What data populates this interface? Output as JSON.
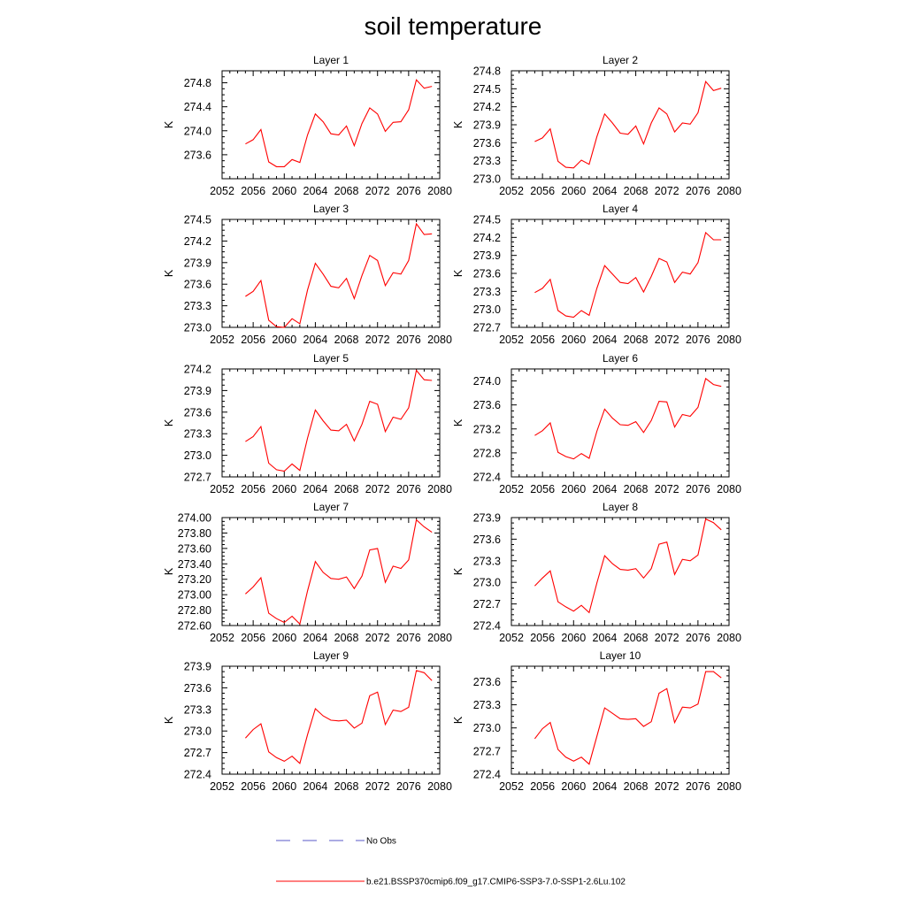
{
  "title": "soil temperature",
  "chart_data": [
    {
      "type": "line",
      "title": "Layer 1",
      "ylabel": "K",
      "xlim": [
        2052,
        2080
      ],
      "ylim": [
        273.2,
        275.0
      ],
      "xticks": [
        "2052",
        "2056",
        "2060",
        "2064",
        "2068",
        "2072",
        "2076",
        "2080"
      ],
      "yticks": [
        "273.6",
        "274.0",
        "274.4",
        "274.8"
      ],
      "x": [
        2055,
        2056,
        2057,
        2058,
        2059,
        2060,
        2061,
        2062,
        2063,
        2064,
        2065,
        2066,
        2067,
        2068,
        2069,
        2070,
        2071,
        2072,
        2073,
        2074,
        2075,
        2076,
        2077,
        2078,
        2079
      ],
      "series": [
        {
          "name": "b.e21.BSSP370cmip6.f09_g17.CMIP6-SSP3-7.0-SSP1-2.6Lu.102",
          "color": "#ff0000",
          "values": [
            273.78,
            273.85,
            274.02,
            273.48,
            273.4,
            273.4,
            273.52,
            273.47,
            273.93,
            274.28,
            274.15,
            273.95,
            273.93,
            274.08,
            273.75,
            274.12,
            274.38,
            274.28,
            273.99,
            274.14,
            274.15,
            274.35,
            274.85,
            274.71,
            274.74
          ]
        }
      ]
    },
    {
      "type": "line",
      "title": "Layer 2",
      "ylabel": "K",
      "xlim": [
        2052,
        2080
      ],
      "ylim": [
        273.0,
        274.8
      ],
      "xticks": [
        "2052",
        "2056",
        "2060",
        "2064",
        "2068",
        "2072",
        "2076",
        "2080"
      ],
      "yticks": [
        "273.0",
        "273.3",
        "273.6",
        "273.9",
        "274.2",
        "274.5",
        "274.8"
      ],
      "x": [
        2055,
        2056,
        2057,
        2058,
        2059,
        2060,
        2061,
        2062,
        2063,
        2064,
        2065,
        2066,
        2067,
        2068,
        2069,
        2070,
        2071,
        2072,
        2073,
        2074,
        2075,
        2076,
        2077,
        2078,
        2079
      ],
      "series": [
        {
          "name": "b.e21.BSSP370cmip6.f09_g17.CMIP6-SSP3-7.0-SSP1-2.6Lu.102",
          "color": "#ff0000",
          "values": [
            273.62,
            273.68,
            273.83,
            273.29,
            273.19,
            273.18,
            273.31,
            273.24,
            273.7,
            274.08,
            273.93,
            273.76,
            273.74,
            273.88,
            273.58,
            273.93,
            274.18,
            274.08,
            273.78,
            273.93,
            273.91,
            274.1,
            274.62,
            274.47,
            274.51
          ]
        }
      ]
    },
    {
      "type": "line",
      "title": "Layer 3",
      "ylabel": "K",
      "xlim": [
        2052,
        2080
      ],
      "ylim": [
        273.0,
        274.5
      ],
      "xticks": [
        "2052",
        "2056",
        "2060",
        "2064",
        "2068",
        "2072",
        "2076",
        "2080"
      ],
      "yticks": [
        "273.0",
        "273.3",
        "273.6",
        "273.9",
        "274.2",
        "274.5"
      ],
      "x": [
        2055,
        2056,
        2057,
        2058,
        2059,
        2060,
        2061,
        2062,
        2063,
        2064,
        2065,
        2066,
        2067,
        2068,
        2069,
        2070,
        2071,
        2072,
        2073,
        2074,
        2075,
        2076,
        2077,
        2078,
        2079
      ],
      "series": [
        {
          "name": "b.e21.BSSP370cmip6.f09_g17.CMIP6-SSP3-7.0-SSP1-2.6Lu.102",
          "color": "#ff0000",
          "values": [
            273.43,
            273.5,
            273.65,
            273.1,
            273.01,
            273.0,
            273.12,
            273.05,
            273.52,
            273.89,
            273.74,
            273.57,
            273.55,
            273.68,
            273.4,
            273.72,
            274.0,
            273.93,
            273.58,
            273.76,
            273.74,
            273.93,
            274.44,
            274.29,
            274.3
          ]
        }
      ]
    },
    {
      "type": "line",
      "title": "Layer 4",
      "ylabel": "K",
      "xlim": [
        2052,
        2080
      ],
      "ylim": [
        272.7,
        274.5
      ],
      "xticks": [
        "2052",
        "2056",
        "2060",
        "2064",
        "2068",
        "2072",
        "2076",
        "2080"
      ],
      "yticks": [
        "272.7",
        "273.0",
        "273.3",
        "273.6",
        "273.9",
        "274.2",
        "274.5"
      ],
      "x": [
        2055,
        2056,
        2057,
        2058,
        2059,
        2060,
        2061,
        2062,
        2063,
        2064,
        2065,
        2066,
        2067,
        2068,
        2069,
        2070,
        2071,
        2072,
        2073,
        2074,
        2075,
        2076,
        2077,
        2078,
        2079
      ],
      "series": [
        {
          "name": "b.e21.BSSP370cmip6.f09_g17.CMIP6-SSP3-7.0-SSP1-2.6Lu.102",
          "color": "#ff0000",
          "values": [
            273.28,
            273.35,
            273.5,
            272.98,
            272.89,
            272.87,
            272.98,
            272.9,
            273.35,
            273.73,
            273.59,
            273.45,
            273.43,
            273.53,
            273.29,
            273.55,
            273.85,
            273.79,
            273.45,
            273.62,
            273.59,
            273.78,
            274.28,
            274.16,
            274.16
          ]
        }
      ]
    },
    {
      "type": "line",
      "title": "Layer 5",
      "ylabel": "K",
      "xlim": [
        2052,
        2080
      ],
      "ylim": [
        272.7,
        274.2
      ],
      "xticks": [
        "2052",
        "2056",
        "2060",
        "2064",
        "2068",
        "2072",
        "2076",
        "2080"
      ],
      "yticks": [
        "272.7",
        "273.0",
        "273.3",
        "273.6",
        "273.9",
        "274.2"
      ],
      "x": [
        2055,
        2056,
        2057,
        2058,
        2059,
        2060,
        2061,
        2062,
        2063,
        2064,
        2065,
        2066,
        2067,
        2068,
        2069,
        2070,
        2071,
        2072,
        2073,
        2074,
        2075,
        2076,
        2077,
        2078,
        2079
      ],
      "series": [
        {
          "name": "b.e21.BSSP370cmip6.f09_g17.CMIP6-SSP3-7.0-SSP1-2.6Lu.102",
          "color": "#ff0000",
          "values": [
            273.19,
            273.26,
            273.4,
            272.89,
            272.8,
            272.78,
            272.88,
            272.79,
            273.24,
            273.63,
            273.48,
            273.35,
            273.34,
            273.43,
            273.2,
            273.43,
            273.75,
            273.71,
            273.33,
            273.53,
            273.5,
            273.66,
            274.18,
            274.05,
            274.04
          ]
        }
      ]
    },
    {
      "type": "line",
      "title": "Layer 6",
      "ylabel": "K",
      "xlim": [
        2052,
        2080
      ],
      "ylim": [
        272.4,
        274.2
      ],
      "xticks": [
        "2052",
        "2056",
        "2060",
        "2064",
        "2068",
        "2072",
        "2076",
        "2080"
      ],
      "yticks": [
        "272.4",
        "272.8",
        "273.2",
        "273.6",
        "274.0"
      ],
      "x": [
        2055,
        2056,
        2057,
        2058,
        2059,
        2060,
        2061,
        2062,
        2063,
        2064,
        2065,
        2066,
        2067,
        2068,
        2069,
        2070,
        2071,
        2072,
        2073,
        2074,
        2075,
        2076,
        2077,
        2078,
        2079
      ],
      "series": [
        {
          "name": "b.e21.BSSP370cmip6.f09_g17.CMIP6-SSP3-7.0-SSP1-2.6Lu.102",
          "color": "#ff0000",
          "values": [
            273.09,
            273.17,
            273.3,
            272.81,
            272.74,
            272.7,
            272.79,
            272.71,
            273.16,
            273.53,
            273.38,
            273.27,
            273.26,
            273.32,
            273.14,
            273.34,
            273.66,
            273.65,
            273.23,
            273.44,
            273.41,
            273.56,
            274.04,
            273.94,
            273.91
          ]
        }
      ]
    },
    {
      "type": "line",
      "title": "Layer 7",
      "ylabel": "K",
      "xlim": [
        2052,
        2080
      ],
      "ylim": [
        272.6,
        274.0
      ],
      "xticks": [
        "2052",
        "2056",
        "2060",
        "2064",
        "2068",
        "2072",
        "2076",
        "2080"
      ],
      "yticks": [
        "272.60",
        "272.80",
        "273.00",
        "273.20",
        "273.40",
        "273.60",
        "273.80",
        "274.00"
      ],
      "x": [
        2055,
        2056,
        2057,
        2058,
        2059,
        2060,
        2061,
        2062,
        2063,
        2064,
        2065,
        2066,
        2067,
        2068,
        2069,
        2070,
        2071,
        2072,
        2073,
        2074,
        2075,
        2076,
        2077,
        2078,
        2079
      ],
      "series": [
        {
          "name": "b.e21.BSSP370cmip6.f09_g17.CMIP6-SSP3-7.0-SSP1-2.6Lu.102",
          "color": "#ff0000",
          "values": [
            273.01,
            273.1,
            273.22,
            272.76,
            272.69,
            272.64,
            272.72,
            272.62,
            273.05,
            273.43,
            273.29,
            273.21,
            273.2,
            273.23,
            273.08,
            273.24,
            273.58,
            273.6,
            273.16,
            273.37,
            273.34,
            273.45,
            273.97,
            273.88,
            273.81
          ]
        }
      ]
    },
    {
      "type": "line",
      "title": "Layer 8",
      "ylabel": "K",
      "xlim": [
        2052,
        2080
      ],
      "ylim": [
        272.4,
        273.9
      ],
      "xticks": [
        "2052",
        "2056",
        "2060",
        "2064",
        "2068",
        "2072",
        "2076",
        "2080"
      ],
      "yticks": [
        "272.4",
        "272.7",
        "273.0",
        "273.3",
        "273.6",
        "273.9"
      ],
      "x": [
        2055,
        2056,
        2057,
        2058,
        2059,
        2060,
        2061,
        2062,
        2063,
        2064,
        2065,
        2066,
        2067,
        2068,
        2069,
        2070,
        2071,
        2072,
        2073,
        2074,
        2075,
        2076,
        2077,
        2078,
        2079
      ],
      "series": [
        {
          "name": "b.e21.BSSP370cmip6.f09_g17.CMIP6-SSP3-7.0-SSP1-2.6Lu.102",
          "color": "#ff0000",
          "values": [
            272.95,
            273.06,
            273.16,
            272.73,
            272.66,
            272.6,
            272.68,
            272.58,
            272.99,
            273.37,
            273.26,
            273.18,
            273.17,
            273.19,
            273.06,
            273.19,
            273.53,
            273.56,
            273.11,
            273.32,
            273.3,
            273.38,
            273.88,
            273.83,
            273.73
          ]
        }
      ]
    },
    {
      "type": "line",
      "title": "Layer 9",
      "ylabel": "K",
      "xlim": [
        2052,
        2080
      ],
      "ylim": [
        272.4,
        273.9
      ],
      "xticks": [
        "2052",
        "2056",
        "2060",
        "2064",
        "2068",
        "2072",
        "2076",
        "2080"
      ],
      "yticks": [
        "272.4",
        "272.7",
        "273.0",
        "273.3",
        "273.6",
        "273.9"
      ],
      "x": [
        2055,
        2056,
        2057,
        2058,
        2059,
        2060,
        2061,
        2062,
        2063,
        2064,
        2065,
        2066,
        2067,
        2068,
        2069,
        2070,
        2071,
        2072,
        2073,
        2074,
        2075,
        2076,
        2077,
        2078,
        2079
      ],
      "series": [
        {
          "name": "b.e21.BSSP370cmip6.f09_g17.CMIP6-SSP3-7.0-SSP1-2.6Lu.102",
          "color": "#ff0000",
          "values": [
            272.9,
            273.02,
            273.1,
            272.71,
            272.63,
            272.58,
            272.65,
            272.55,
            272.95,
            273.31,
            273.21,
            273.15,
            273.14,
            273.15,
            273.04,
            273.11,
            273.49,
            273.54,
            273.09,
            273.29,
            273.27,
            273.33,
            273.84,
            273.81,
            273.7
          ]
        }
      ]
    },
    {
      "type": "line",
      "title": "Layer 10",
      "ylabel": "K",
      "xlim": [
        2052,
        2080
      ],
      "ylim": [
        272.4,
        273.8
      ],
      "xticks": [
        "2052",
        "2056",
        "2060",
        "2064",
        "2068",
        "2072",
        "2076",
        "2080"
      ],
      "yticks": [
        "272.4",
        "272.7",
        "273.0",
        "273.3",
        "273.6"
      ],
      "x": [
        2055,
        2056,
        2057,
        2058,
        2059,
        2060,
        2061,
        2062,
        2063,
        2064,
        2065,
        2066,
        2067,
        2068,
        2069,
        2070,
        2071,
        2072,
        2073,
        2074,
        2075,
        2076,
        2077,
        2078,
        2079
      ],
      "series": [
        {
          "name": "b.e21.BSSP370cmip6.f09_g17.CMIP6-SSP3-7.0-SSP1-2.6Lu.102",
          "color": "#ff0000",
          "values": [
            272.86,
            272.99,
            273.07,
            272.72,
            272.62,
            272.57,
            272.62,
            272.53,
            272.89,
            273.26,
            273.19,
            273.12,
            273.11,
            273.12,
            273.02,
            273.08,
            273.45,
            273.51,
            273.07,
            273.27,
            273.26,
            273.31,
            273.73,
            273.73,
            273.65
          ]
        }
      ]
    }
  ],
  "legend": [
    {
      "label": "No Obs",
      "color": "#5a5ac8",
      "style": "dashed"
    },
    {
      "label": "b.e21.BSSP370cmip6.f09_g17.CMIP6-SSP3-7.0-SSP1-2.6Lu.102",
      "color": "#ff0000",
      "style": "solid"
    }
  ]
}
